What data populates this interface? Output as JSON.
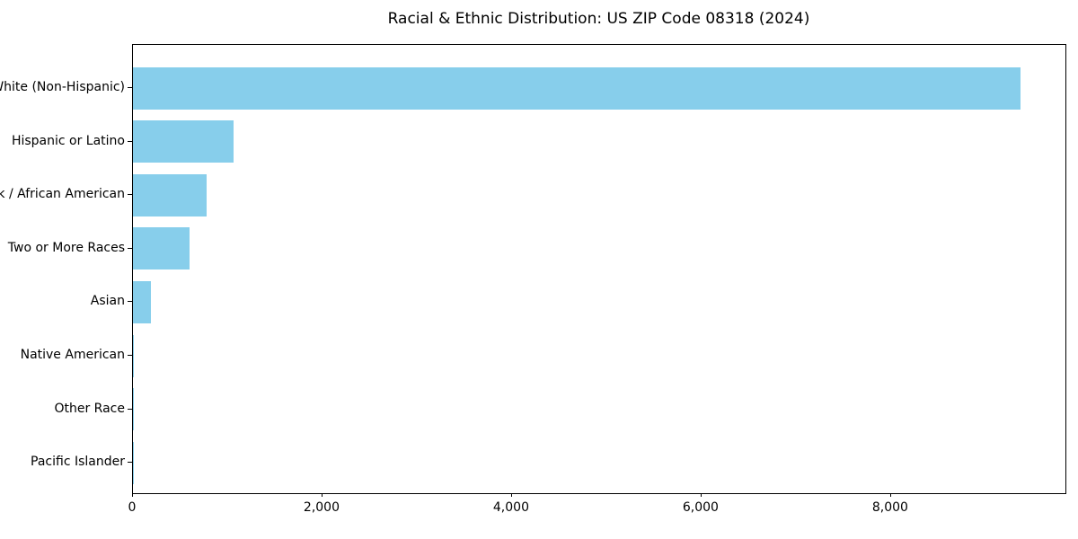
{
  "chart_data": {
    "type": "bar",
    "orientation": "horizontal",
    "title": "Racial & Ethnic Distribution: US ZIP Code 08318 (2024)",
    "xlabel": "",
    "ylabel": "",
    "categories": [
      "White (Non-Hispanic)",
      "Hispanic or Latino",
      "Black / African American",
      "Two or More Races",
      "Asian",
      "Native American",
      "Other Race",
      "Pacific Islander"
    ],
    "values": [
      9365,
      1060,
      776,
      600,
      190,
      12,
      6,
      2
    ],
    "xlim": [
      0,
      9840
    ],
    "x_ticks": [
      0,
      2000,
      4000,
      6000,
      8000
    ],
    "x_tick_labels": [
      "0",
      "2,000",
      "4,000",
      "6,000",
      "8,000"
    ],
    "bar_color": "#87CEEB",
    "text_color": "#000000",
    "spine_color": "#000000",
    "grid": false,
    "legend": null
  }
}
